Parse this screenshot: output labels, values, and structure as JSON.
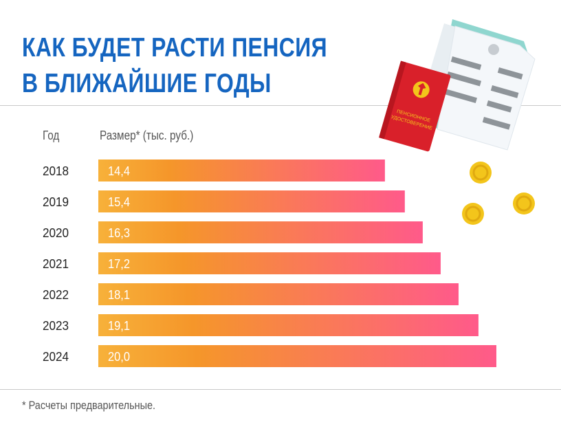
{
  "title": {
    "line1": "КАК БУДЕТ РАСТИ ПЕНСИЯ",
    "line2": "В БЛИЖАЙШИЕ ГОДЫ"
  },
  "headers": {
    "year": "Год",
    "size": "Размер* (тыс. руб.)"
  },
  "footnote": "* Расчеты предварительные.",
  "certificate": {
    "line1": "ПЕНСИОННОЕ",
    "line2": "УДОСТОВЕРЕНИЕ"
  },
  "colors": {
    "title": "#1565c0",
    "bar_start": "#f7b13a",
    "bar_mid": "#f5962a",
    "bar_end": "#ff5a8a",
    "coin": "#f3c51b",
    "certificate": "#d9202a"
  },
  "chart_data": {
    "type": "bar",
    "orientation": "horizontal",
    "categories": [
      "2018",
      "2019",
      "2020",
      "2021",
      "2022",
      "2023",
      "2024"
    ],
    "values": [
      14.4,
      15.4,
      16.3,
      17.2,
      18.1,
      19.1,
      20.0
    ],
    "value_labels": [
      "14,4",
      "15,4",
      "16,3",
      "17,2",
      "18,1",
      "19,1",
      "20,0"
    ],
    "xlabel": "Размер* (тыс. руб.)",
    "ylabel": "Год",
    "grid": false,
    "legend": "none"
  }
}
